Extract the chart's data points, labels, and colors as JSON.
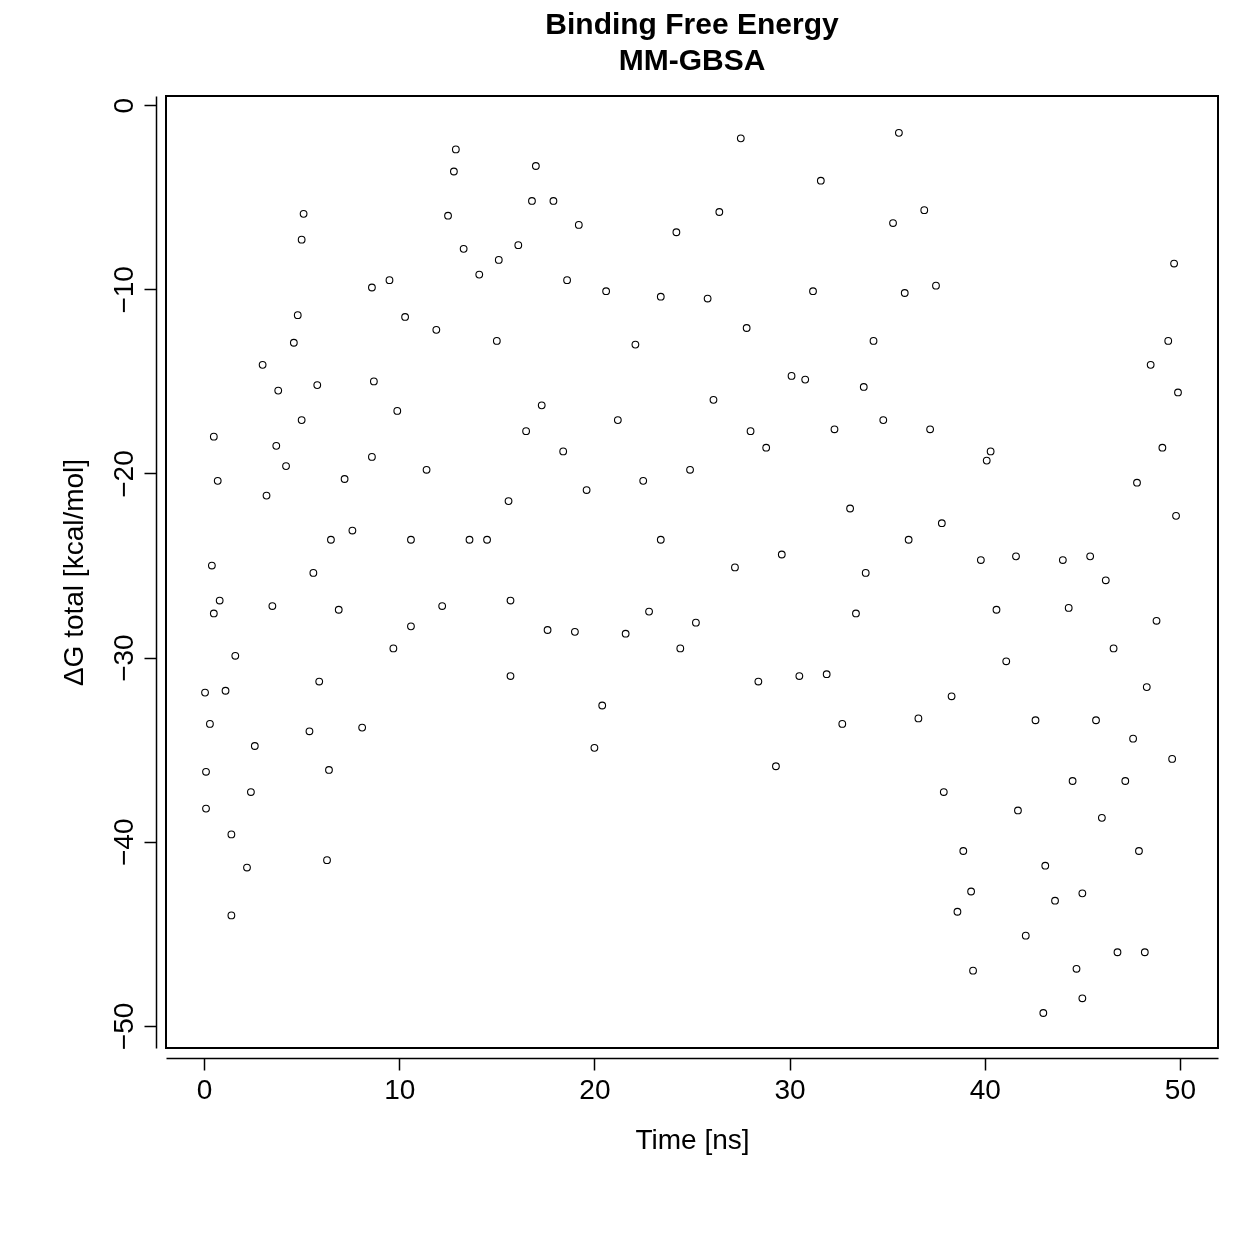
{
  "chart_data": {
    "type": "scatter",
    "title": "Binding Free Energy",
    "subtitle": "MM-GBSA",
    "xlabel": "Time [ns]",
    "ylabel": "ΔG total [kcal/mol]",
    "xlim": [
      -1.95,
      51.95
    ],
    "ylim": [
      -51.2,
      0.5
    ],
    "xticks": [
      0,
      10,
      20,
      30,
      40,
      50
    ],
    "yticks": [
      -50,
      -40,
      -30,
      -20,
      -10,
      0
    ],
    "marker": "circle",
    "grid": false,
    "legend": false,
    "x": [
      0.05,
      0.1,
      0.1,
      0.3,
      0.4,
      0.5,
      0.7,
      0.5,
      0.8,
      1.1,
      1.4,
      1.4,
      1.6,
      2.2,
      2.4,
      2.6,
      3.0,
      3.2,
      3.5,
      3.7,
      3.8,
      4.2,
      4.6,
      4.8,
      5.0,
      5.1,
      5.0,
      5.4,
      5.6,
      5.8,
      5.9,
      6.3,
      6.4,
      6.5,
      6.9,
      7.2,
      7.6,
      8.1,
      8.6,
      8.7,
      8.6,
      9.5,
      9.7,
      9.9,
      10.3,
      10.6,
      10.6,
      11.4,
      11.9,
      12.2,
      12.5,
      12.8,
      12.9,
      13.3,
      13.6,
      14.1,
      14.5,
      15.0,
      15.1,
      15.6,
      15.7,
      15.7,
      16.1,
      16.5,
      16.8,
      17.0,
      17.3,
      17.6,
      17.9,
      18.4,
      18.6,
      19.0,
      19.2,
      19.6,
      20.0,
      20.4,
      20.6,
      21.2,
      21.6,
      22.1,
      22.5,
      22.8,
      23.4,
      23.4,
      24.2,
      24.4,
      24.9,
      25.2,
      25.8,
      26.1,
      26.4,
      27.2,
      27.5,
      27.8,
      28.0,
      28.4,
      28.8,
      29.3,
      29.6,
      30.1,
      30.5,
      30.8,
      31.2,
      31.6,
      31.9,
      32.3,
      32.7,
      33.1,
      33.4,
      33.8,
      33.9,
      34.3,
      34.8,
      35.3,
      35.6,
      35.9,
      36.1,
      36.6,
      36.9,
      37.2,
      37.5,
      37.8,
      37.9,
      38.3,
      38.6,
      38.9,
      39.3,
      39.4,
      39.8,
      40.1,
      40.3,
      40.6,
      41.1,
      41.6,
      41.7,
      42.1,
      42.6,
      43.0,
      43.1,
      43.6,
      44.0,
      44.3,
      44.5,
      44.7,
      45.0,
      45.0,
      45.4,
      45.7,
      46.0,
      46.2,
      46.6,
      46.8,
      47.2,
      47.6,
      47.8,
      47.9,
      48.2,
      48.3,
      48.5,
      48.8,
      49.1,
      49.4,
      49.6,
      49.7,
      49.8,
      49.9
    ],
    "series": [
      {
        "color": "#000000",
        "values": [
          -31.9,
          -38.2,
          -36.2,
          -33.6,
          -25.0,
          -18.0,
          -20.4,
          -27.6,
          -26.9,
          -31.8,
          -44.0,
          -39.6,
          -29.9,
          -41.4,
          -37.3,
          -34.8,
          -14.1,
          -21.2,
          -27.2,
          -18.5,
          -15.5,
          -19.6,
          -12.9,
          -11.4,
          -17.1,
          -5.9,
          -7.3,
          -34.0,
          -25.4,
          -15.2,
          -31.3,
          -41.0,
          -36.1,
          -23.6,
          -27.4,
          -20.3,
          -23.1,
          -33.8,
          -19.1,
          -15.0,
          -9.9,
          -9.5,
          -29.5,
          -16.6,
          -11.5,
          -23.6,
          -28.3,
          -19.8,
          -12.2,
          -27.2,
          -6.0,
          -3.6,
          -2.4,
          -7.8,
          -23.6,
          -9.2,
          -23.6,
          -12.8,
          -8.4,
          -21.5,
          -26.9,
          -31.0,
          -7.6,
          -17.7,
          -5.2,
          -3.3,
          -16.3,
          -28.5,
          -5.2,
          -18.8,
          -9.5,
          -28.6,
          -6.5,
          -20.9,
          -34.9,
          -32.6,
          -10.1,
          -17.1,
          -28.7,
          -13.0,
          -20.4,
          -27.5,
          -23.6,
          -10.4,
          -6.9,
          -29.5,
          -19.8,
          -28.1,
          -10.5,
          -16.0,
          -5.8,
          -25.1,
          -1.8,
          -12.1,
          -17.7,
          -31.3,
          -18.6,
          -35.9,
          -24.4,
          -14.7,
          -31.0,
          -14.9,
          -10.1,
          -4.1,
          -30.9,
          -17.6,
          -33.6,
          -21.9,
          -27.6,
          -15.3,
          -25.4,
          -12.8,
          -17.1,
          -6.4,
          -1.5,
          -10.2,
          -23.6,
          -33.3,
          -5.7,
          -17.6,
          -9.8,
          -22.7,
          -37.3,
          -32.1,
          -43.8,
          -40.5,
          -42.7,
          -47.0,
          -24.7,
          -19.3,
          -18.8,
          -27.4,
          -30.2,
          -24.5,
          -38.3,
          -45.1,
          -33.4,
          -49.3,
          -41.3,
          -43.2,
          -24.7,
          -27.3,
          -36.7,
          -46.9,
          -42.8,
          -48.5,
          -24.5,
          -33.4,
          -38.7,
          -25.8,
          -29.5,
          -46.0,
          -36.7,
          -34.4,
          -20.5,
          -40.5,
          -46.0,
          -31.6,
          -14.1,
          -28.0,
          -18.6,
          -12.8,
          -35.5,
          -8.6,
          -22.3,
          -15.6
        ]
      }
    ]
  }
}
